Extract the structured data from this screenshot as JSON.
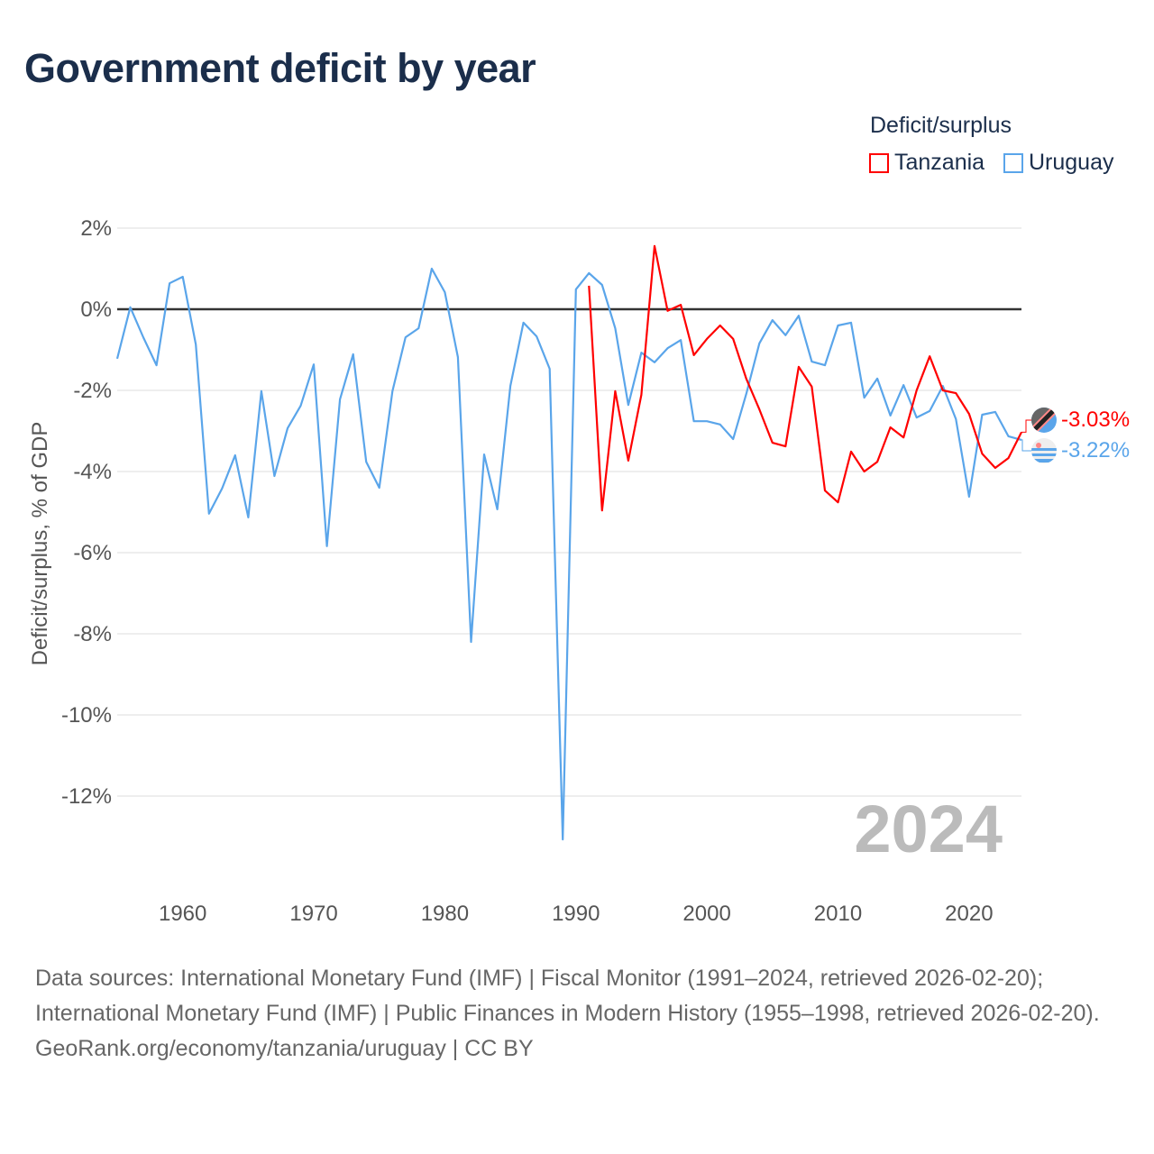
{
  "title": "Government deficit by year",
  "legend": {
    "title": "Deficit/surplus",
    "items": [
      {
        "name": "Tanzania",
        "color": "#ff0000"
      },
      {
        "name": "Uruguay",
        "color": "#5aa5ea"
      }
    ]
  },
  "watermark_year": "2024",
  "footer": {
    "sources": "Data sources: International Monetary Fund (IMF) | Fiscal Monitor (1991–2024, retrieved 2026-02-20); International Monetary Fund (IMF) | Public Finances in Modern History (1955–1998, retrieved 2026-02-20).",
    "credit": "GeoRank.org/economy/tanzania/uruguay | CC BY"
  },
  "chart_data": {
    "type": "line",
    "title": "Government deficit by year",
    "xlabel": "",
    "ylabel": "Deficit/surplus, % of GDP",
    "xlim": [
      1955,
      2024
    ],
    "ylim": [
      -13.2,
      2
    ],
    "xticks": [
      1960,
      1970,
      1980,
      1990,
      2000,
      2010,
      2020
    ],
    "yticks": [
      2,
      0,
      -2,
      -4,
      -6,
      -8,
      -10,
      -12
    ],
    "ytick_labels": [
      "2%",
      "0%",
      "-2%",
      "-4%",
      "-6%",
      "-8%",
      "-10%",
      "-12%"
    ],
    "grid": true,
    "legend_position": "top-right",
    "end_labels": {
      "Tanzania": "-3.03%",
      "Uruguay": "-3.22%"
    },
    "series": [
      {
        "name": "Uruguay",
        "color": "#5aa5ea",
        "start_year": 1955,
        "values": [
          -1.22,
          0.05,
          -0.7,
          -1.38,
          0.64,
          0.8,
          -0.87,
          -5.04,
          -4.42,
          -3.6,
          -5.13,
          -2.02,
          -4.11,
          -2.93,
          -2.38,
          -1.36,
          -5.84,
          -2.22,
          -1.11,
          -3.76,
          -4.4,
          -2.02,
          -0.69,
          -0.47,
          1.0,
          0.42,
          -1.18,
          -8.2,
          -3.58,
          -4.93,
          -1.89,
          -0.33,
          -0.67,
          -1.47,
          -13.07,
          0.49,
          0.89,
          0.6,
          -0.47,
          -2.36,
          -1.07,
          -1.31,
          -0.96,
          -0.76,
          -2.76,
          -2.76,
          -2.84,
          -3.2,
          -2.09,
          -0.84,
          -0.27,
          -0.64,
          -0.16,
          -1.29,
          -1.38,
          -0.4,
          -0.33,
          -2.18,
          -1.71,
          -2.62,
          -1.87,
          -2.67,
          -2.51,
          -1.89,
          -2.71,
          -4.62,
          -2.6,
          -2.53,
          -3.13,
          -3.22
        ]
      },
      {
        "name": "Tanzania",
        "color": "#ff0000",
        "start_year": 1991,
        "values": [
          0.58,
          -4.96,
          -2.02,
          -3.73,
          -2.11,
          1.56,
          -0.04,
          0.11,
          -1.13,
          -0.73,
          -0.4,
          -0.73,
          -1.71,
          -2.47,
          -3.29,
          -3.38,
          -1.42,
          -1.91,
          -4.47,
          -4.76,
          -3.51,
          -4.0,
          -3.76,
          -2.91,
          -3.16,
          -2.0,
          -1.16,
          -2.0,
          -2.07,
          -2.58,
          -3.56,
          -3.91,
          -3.67,
          -3.03
        ]
      }
    ]
  }
}
